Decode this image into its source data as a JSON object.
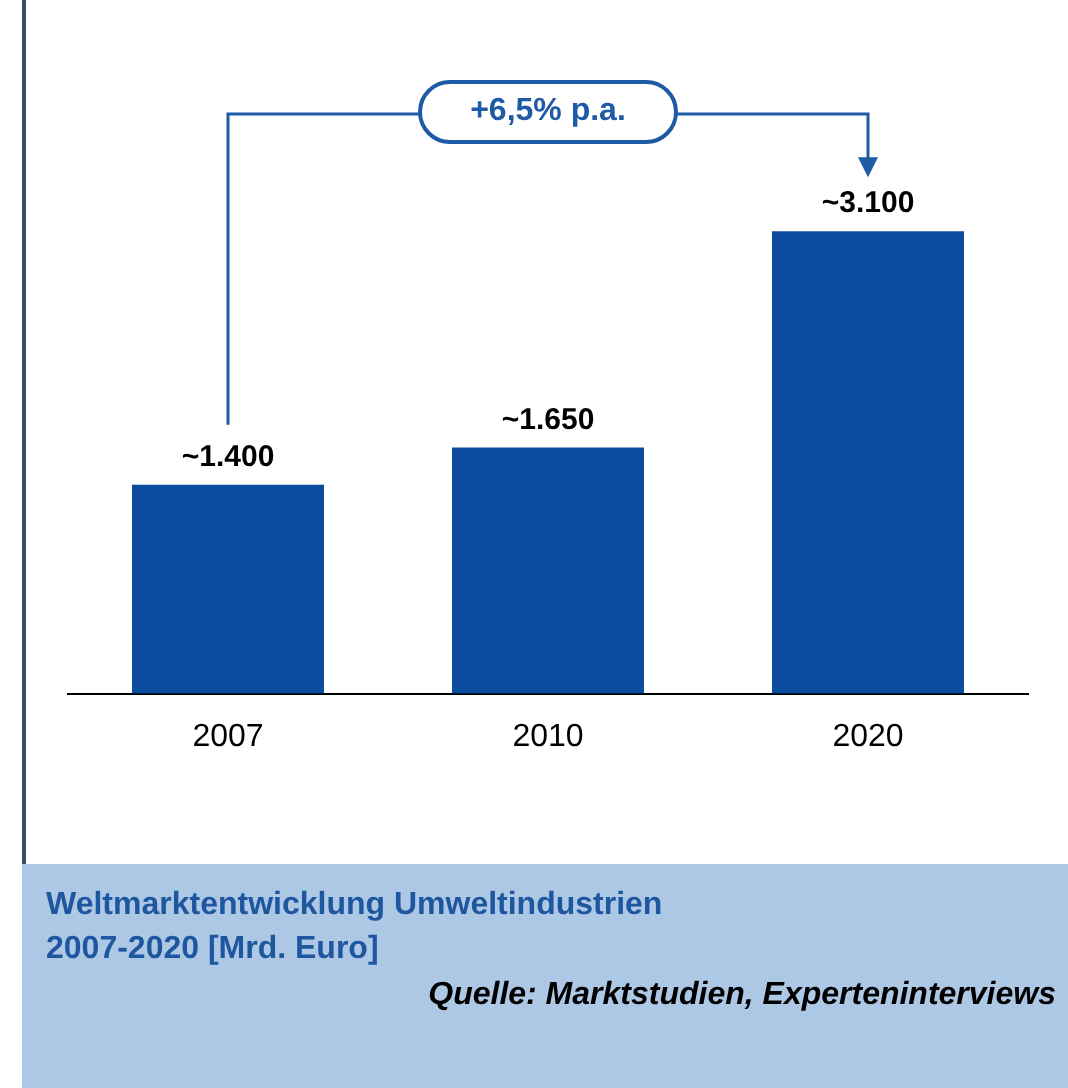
{
  "chart_data": {
    "type": "bar",
    "title": "Weltmarktentwicklung Umweltindustrien\n2007-2020 [Mrd. Euro]",
    "categories": [
      "2007",
      "2010",
      "2020"
    ],
    "values": [
      1400,
      1650,
      3100
    ],
    "value_labels": [
      "~1.400",
      "~1.650",
      "~3.100"
    ],
    "color": "#0a4c9e",
    "grid": false,
    "annotations": [
      "+6,5% p.a.",
      "Quelle: Marktstudien, Experteninterviews"
    ]
  }
}
